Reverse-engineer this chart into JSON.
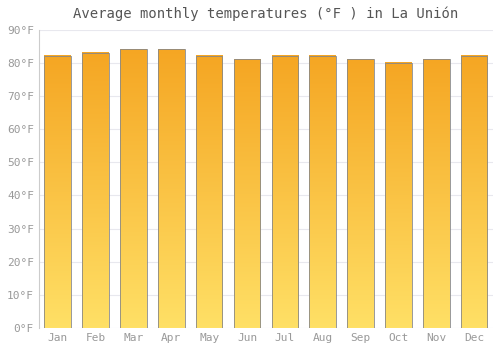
{
  "title": "Average monthly temperatures (°F ) in La Unión",
  "months": [
    "Jan",
    "Feb",
    "Mar",
    "Apr",
    "May",
    "Jun",
    "Jul",
    "Aug",
    "Sep",
    "Oct",
    "Nov",
    "Dec"
  ],
  "values": [
    82,
    83,
    84,
    84,
    82,
    81,
    82,
    82,
    81,
    80,
    81,
    82
  ],
  "bar_color_main": "#FBBC05",
  "bar_color_light": "#FFE066",
  "bar_color_dark": "#F5A623",
  "bar_edge_color": "#888888",
  "background_color": "#FFFFFF",
  "grid_color": "#E8E8EE",
  "ytick_labels": [
    "0°F",
    "10°F",
    "20°F",
    "30°F",
    "40°F",
    "50°F",
    "60°F",
    "70°F",
    "80°F",
    "90°F"
  ],
  "ytick_values": [
    0,
    10,
    20,
    30,
    40,
    50,
    60,
    70,
    80,
    90
  ],
  "ylim": [
    0,
    90
  ],
  "title_fontsize": 10,
  "tick_fontsize": 8,
  "text_color": "#999999"
}
